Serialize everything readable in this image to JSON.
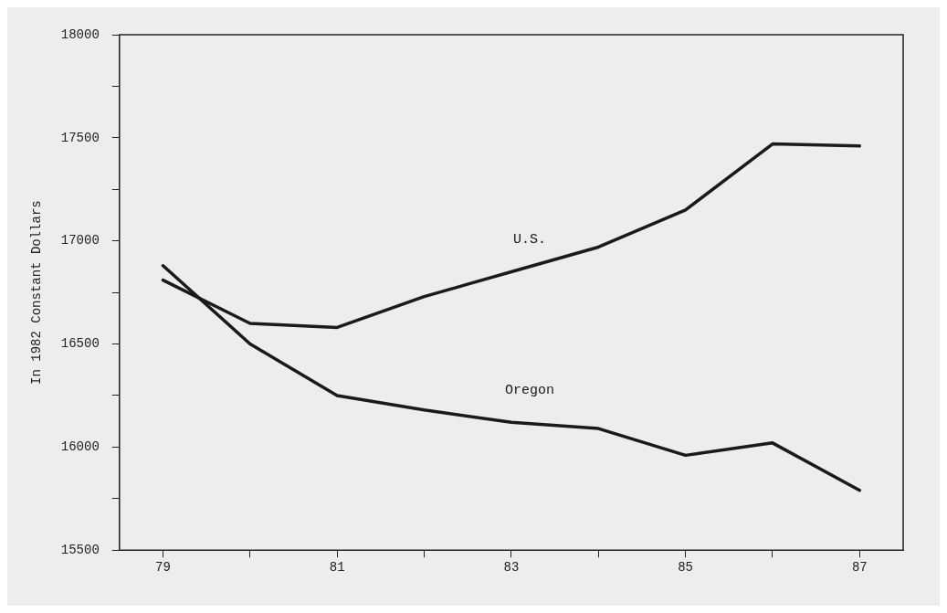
{
  "chart_data": {
    "type": "line",
    "ylabel": "In 1982 Constant Dollars",
    "x": [
      79,
      80,
      81,
      82,
      83,
      84,
      85,
      86,
      87
    ],
    "series": [
      {
        "name": "U.S.",
        "color": "#1a1a1a",
        "values": [
          16810,
          16600,
          16580,
          16730,
          16850,
          16970,
          17150,
          17470,
          17460
        ]
      },
      {
        "name": "Oregon",
        "color": "#1a1a1a",
        "values": [
          16880,
          16500,
          16250,
          16180,
          16120,
          16090,
          15960,
          16020,
          15790
        ]
      }
    ],
    "xlim": [
      78.5,
      87.5
    ],
    "xticks": [
      79,
      {
        "value": 80,
        "label": null
      },
      81,
      {
        "value": 82,
        "label": null
      },
      83,
      {
        "value": 84,
        "label": null
      },
      85,
      {
        "value": 86,
        "label": null
      },
      87
    ],
    "ylim": [
      15500,
      18000
    ],
    "yticks": [
      15500,
      {
        "value": 15750,
        "label": null
      },
      16000,
      {
        "value": 16250,
        "label": null
      },
      16500,
      {
        "value": 16750,
        "label": null
      },
      17000,
      {
        "value": 17250,
        "label": null
      },
      17500,
      {
        "value": 17750,
        "label": null
      },
      18000
    ],
    "grid": false,
    "legend": false,
    "marker": "none",
    "line_style": "solid"
  }
}
